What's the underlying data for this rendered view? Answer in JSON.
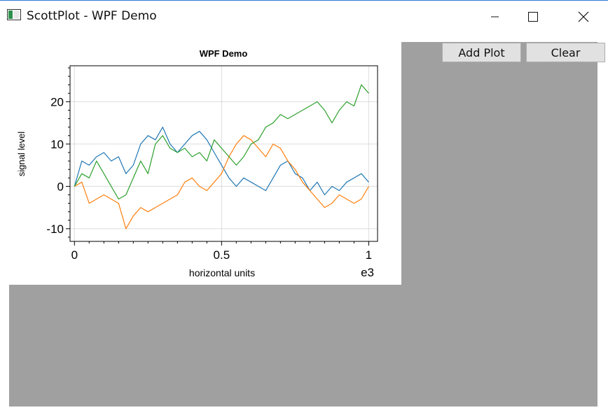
{
  "window": {
    "title": "ScottPlot - WPF Demo",
    "icons": [
      "app-icon",
      "minimize-icon",
      "maximize-icon",
      "close-icon"
    ]
  },
  "toolbar": {
    "add_plot_label": "Add Plot",
    "clear_label": "Clear"
  },
  "colors": {
    "client_background": "#a0a0a0",
    "series": [
      "#1f77b4",
      "#ff7f0e",
      "#2ca02c"
    ]
  },
  "chart_data": {
    "type": "line",
    "title": "WPF Demo",
    "xlabel": "horizontal units",
    "ylabel": "signal level",
    "x_multiplier_label": "e3",
    "xlim": [
      -0.015,
      1.03
    ],
    "ylim": [
      -13,
      28.5
    ],
    "xticks": [
      {
        "value": 0,
        "label": "0"
      },
      {
        "value": 0.5,
        "label": "0.5"
      },
      {
        "value": 1,
        "label": "1"
      }
    ],
    "yticks": [
      {
        "value": -10,
        "label": "-10"
      },
      {
        "value": 0,
        "label": "0"
      },
      {
        "value": 10,
        "label": "10"
      },
      {
        "value": 20,
        "label": "20"
      }
    ],
    "grid": true,
    "x": [
      0,
      0.025,
      0.05,
      0.075,
      0.1,
      0.125,
      0.15,
      0.175,
      0.2,
      0.225,
      0.25,
      0.275,
      0.3,
      0.325,
      0.35,
      0.375,
      0.4,
      0.425,
      0.45,
      0.475,
      0.5,
      0.525,
      0.55,
      0.575,
      0.6,
      0.625,
      0.65,
      0.675,
      0.7,
      0.725,
      0.75,
      0.775,
      0.8,
      0.825,
      0.85,
      0.875,
      0.9,
      0.925,
      0.95,
      0.975,
      1.0
    ],
    "series": [
      {
        "values": [
          0,
          6,
          5,
          7,
          8,
          6,
          7,
          3,
          5,
          10,
          12,
          11,
          14,
          10,
          8,
          10,
          12,
          13,
          11,
          8,
          5,
          2,
          0,
          2,
          1,
          0,
          -1,
          2,
          5,
          6,
          3,
          2,
          -1,
          1,
          -2,
          0,
          -1,
          1,
          2,
          3,
          1
        ]
      },
      {
        "values": [
          0,
          1,
          -4,
          -3,
          -2,
          -3,
          -4,
          -10,
          -7,
          -5,
          -6,
          -5,
          -4,
          -3,
          -2,
          1,
          2,
          0,
          -1,
          1,
          3,
          7,
          10,
          12,
          11,
          9,
          7,
          10,
          9,
          6,
          4,
          1,
          -1,
          -3,
          -5,
          -4,
          -2,
          -3,
          -4,
          -3,
          0
        ]
      },
      {
        "values": [
          0,
          3,
          2,
          6,
          3,
          0,
          -3,
          -2,
          2,
          6,
          3,
          10,
          12,
          9,
          8,
          9,
          7,
          8,
          6,
          11,
          9,
          7,
          5,
          7,
          10,
          11,
          14,
          15,
          17,
          16,
          17,
          18,
          19,
          20,
          18,
          15,
          18,
          20,
          19,
          24,
          22
        ]
      }
    ]
  }
}
